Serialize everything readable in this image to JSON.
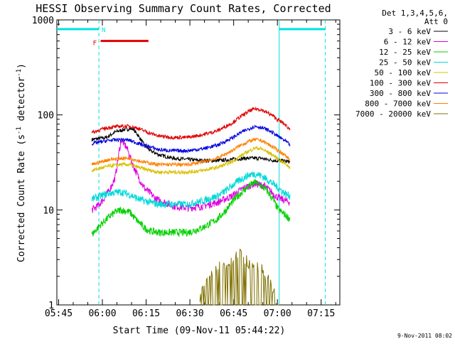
{
  "chart_data": {
    "type": "line",
    "title": "HESSI Observing Summary Count Rates, Corrected",
    "xlabel": "Start Time (09-Nov-11 05:44:22)",
    "ylabel_main": "Corrected Count Rate (s",
    "ylabel_sup1": "-1",
    "ylabel_mid": " detector",
    "ylabel_sup2": "-1",
    "ylabel_end": ")",
    "footer": "9-Nov-2011 08:02",
    "x_unit": "minutes after 05:44:22",
    "xlim": [
      0,
      97
    ],
    "y_scale": "log",
    "ylim": [
      1,
      1000
    ],
    "xticks": [
      {
        "t": 0.6,
        "label": "05:45"
      },
      {
        "t": 15.6,
        "label": "06:00"
      },
      {
        "t": 30.6,
        "label": "06:15"
      },
      {
        "t": 45.6,
        "label": "06:30"
      },
      {
        "t": 60.6,
        "label": "06:45"
      },
      {
        "t": 75.6,
        "label": "07:00"
      },
      {
        "t": 90.6,
        "label": "07:15"
      }
    ],
    "yticks": [
      {
        "v": 1,
        "label": "1"
      },
      {
        "v": 10,
        "label": "10"
      },
      {
        "v": 100,
        "label": "100"
      },
      {
        "v": 1000,
        "label": "1000"
      }
    ],
    "legend_header": [
      "Det 1,3,4,5,6,",
      "Att 0"
    ],
    "legend_position": "right",
    "night_bars": [
      [
        0,
        14.4
      ],
      [
        76.2,
        92
      ]
    ],
    "night_bar_level": 800,
    "boundaries": [
      {
        "t": 14.4,
        "style": "dashed"
      },
      {
        "t": 76.2,
        "style": "solid"
      },
      {
        "t": 92,
        "style": "dashed"
      }
    ],
    "saa_flags": [
      {
        "label": "N",
        "t": 16,
        "value": 800,
        "color": "#00e5e5"
      },
      {
        "label": "F",
        "t": 13,
        "value": 580,
        "color": "#e00000"
      }
    ],
    "flare_bar": {
      "t0": 15,
      "t1": 31.4,
      "value": 600,
      "color": "#e00000"
    },
    "series": [
      {
        "name": "3 - 6 keV",
        "color": "#000000",
        "x": [
          12,
          17,
          20,
          23,
          26,
          28,
          30,
          32,
          35,
          40,
          45,
          50,
          55,
          60,
          65,
          70,
          72,
          75,
          77,
          80
        ],
        "values": [
          55,
          58,
          66,
          70,
          72,
          60,
          48,
          42,
          38,
          35,
          34,
          33,
          33,
          34,
          35,
          35,
          34,
          33,
          33,
          32
        ]
      },
      {
        "name": "6 - 12 keV",
        "color": "#e000e0",
        "x": [
          12,
          14,
          16,
          18,
          20,
          22,
          24,
          26,
          28,
          30,
          32,
          34,
          37,
          40,
          45,
          50,
          55,
          60,
          64,
          68,
          71,
          73,
          75,
          77,
          80
        ],
        "values": [
          10,
          11,
          13,
          16,
          22,
          55,
          45,
          30,
          22,
          17,
          15,
          13,
          12,
          11,
          10.5,
          11,
          12,
          14,
          17,
          19,
          18,
          16,
          14,
          13,
          12
        ]
      },
      {
        "name": "12 - 25 keV",
        "color": "#00d000",
        "x": [
          12,
          15,
          18,
          20,
          22,
          25,
          27,
          30,
          32,
          35,
          40,
          45,
          50,
          55,
          58,
          60,
          63,
          66,
          68,
          70,
          72,
          74,
          76,
          78,
          80
        ],
        "values": [
          5.5,
          7,
          8.5,
          9.5,
          10,
          9.5,
          8,
          6.5,
          6,
          5.8,
          5.8,
          5.8,
          6.5,
          8,
          10,
          12,
          15,
          18,
          19.5,
          18,
          16,
          13,
          10,
          9,
          8
        ]
      },
      {
        "name": "25 - 50 keV",
        "color": "#00d8d8",
        "x": [
          12,
          15,
          18,
          22,
          25,
          28,
          32,
          35,
          40,
          45,
          50,
          55,
          58,
          60,
          63,
          66,
          68,
          70,
          72,
          74,
          76,
          78,
          80
        ],
        "values": [
          13,
          14,
          15,
          15.5,
          14.5,
          13,
          12,
          11.5,
          11.5,
          11.5,
          12.5,
          14,
          16,
          18,
          21,
          23.5,
          24,
          23,
          21,
          19,
          17,
          15,
          14
        ]
      },
      {
        "name": "50 - 100 keV",
        "color": "#d8c000",
        "x": [
          12,
          15,
          18,
          22,
          25,
          28,
          32,
          35,
          40,
          45,
          50,
          55,
          60,
          63,
          66,
          68,
          70,
          72,
          74,
          76,
          78,
          80
        ],
        "values": [
          26,
          27.5,
          29,
          30,
          30,
          28,
          26,
          25,
          25,
          25,
          26,
          28,
          32,
          37,
          42,
          45,
          44,
          41,
          38,
          34,
          31,
          28
        ]
      },
      {
        "name": "100 - 300 keV",
        "color": "#e00000",
        "x": [
          12,
          15,
          18,
          22,
          25,
          28,
          32,
          35,
          40,
          45,
          50,
          55,
          60,
          63,
          66,
          68,
          70,
          72,
          74,
          76,
          78,
          80
        ],
        "values": [
          65,
          70,
          74,
          76,
          76,
          72,
          64,
          60,
          58,
          58,
          62,
          68,
          82,
          96,
          110,
          116,
          114,
          106,
          98,
          88,
          80,
          70
        ]
      },
      {
        "name": "300 - 800 keV",
        "color": "#0000e0",
        "x": [
          12,
          15,
          18,
          22,
          25,
          28,
          32,
          35,
          40,
          45,
          50,
          55,
          60,
          63,
          66,
          68,
          70,
          72,
          74,
          76,
          78,
          80
        ],
        "values": [
          50,
          52,
          54,
          55,
          54,
          50,
          46,
          43,
          42,
          42,
          44,
          48,
          57,
          65,
          72,
          76,
          74,
          70,
          65,
          59,
          54,
          48
        ]
      },
      {
        "name": "800 - 7000 keV",
        "color": "#ff8000",
        "x": [
          12,
          15,
          18,
          22,
          25,
          28,
          32,
          35,
          40,
          45,
          50,
          55,
          60,
          63,
          66,
          68,
          70,
          72,
          74,
          76,
          78,
          80
        ],
        "values": [
          30,
          32,
          34,
          35,
          35,
          33,
          31,
          30,
          30,
          30,
          32,
          35,
          42,
          48,
          53,
          55,
          54,
          50,
          46,
          42,
          38,
          34
        ]
      },
      {
        "name": "7000 - 20000 keV",
        "color": "#807000",
        "x": [
          49,
          51,
          53,
          55,
          57,
          59,
          61,
          63,
          65,
          67,
          69,
          71,
          73,
          75,
          76
        ],
        "values": [
          1.2,
          1.6,
          2.2,
          2.6,
          2.5,
          2.8,
          3.1,
          3.4,
          3.0,
          2.5,
          2.6,
          2.2,
          1.7,
          1.3,
          1.0
        ]
      }
    ]
  }
}
